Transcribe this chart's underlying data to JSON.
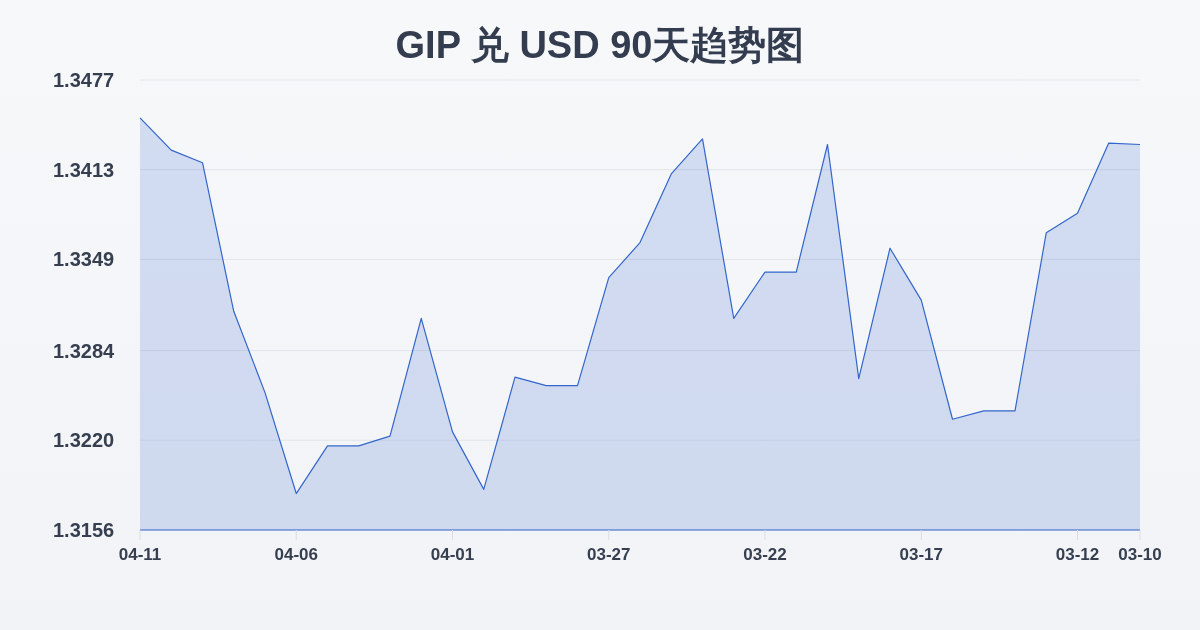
{
  "chart_data": {
    "type": "area",
    "title": "GIP 兑 USD 90天趋势图",
    "categories": [
      "04-11",
      null,
      null,
      null,
      null,
      "04-06",
      null,
      null,
      null,
      null,
      "04-01",
      null,
      null,
      null,
      null,
      "03-27",
      null,
      null,
      null,
      null,
      "03-22",
      null,
      null,
      null,
      null,
      "03-17",
      null,
      null,
      null,
      null,
      "03-12",
      null,
      "03-10"
    ],
    "values": [
      1.345,
      1.3427,
      1.3418,
      1.3312,
      1.3254,
      1.3182,
      1.3216,
      1.3216,
      1.3223,
      1.3307,
      1.3226,
      1.3185,
      1.3265,
      1.3259,
      1.3259,
      1.3336,
      1.3361,
      1.341,
      1.3435,
      1.3307,
      1.334,
      1.334,
      1.3431,
      1.3264,
      1.3357,
      1.332,
      1.3235,
      1.3241,
      1.3241,
      1.3368,
      1.3382,
      1.3432,
      1.3431
    ],
    "color": "#3366cc",
    "ylim": [
      1.3156,
      1.3477
    ],
    "yticks": [
      1.3156,
      {
        "value": 1.322,
        "label": "1.3220"
      },
      1.3284,
      1.3349,
      1.3413,
      1.3477
    ],
    "grid": "y"
  }
}
